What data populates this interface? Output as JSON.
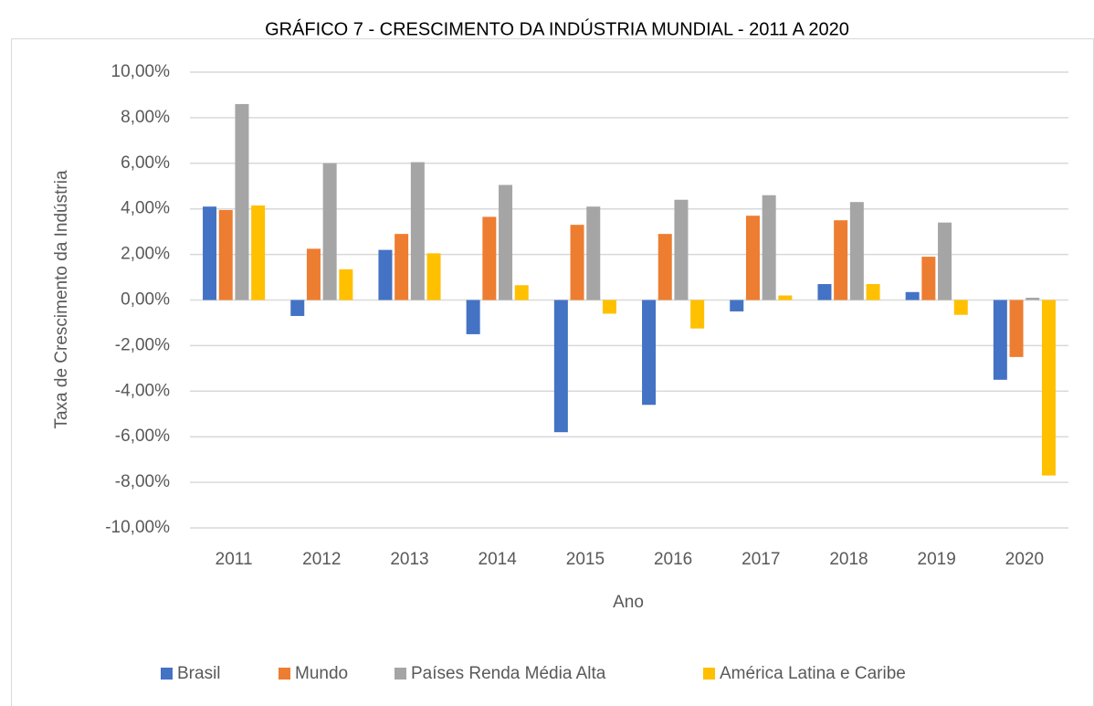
{
  "chart_data": {
    "type": "bar",
    "title": "GRÁFICO 7 - CRESCIMENTO DA INDÚSTRIA MUNDIAL - 2011 A 2020",
    "xlabel": "Ano",
    "ylabel": "Taxa de Crescimento da Indústria",
    "categories": [
      "2011",
      "2012",
      "2013",
      "2014",
      "2015",
      "2016",
      "2017",
      "2018",
      "2019",
      "2020"
    ],
    "series": [
      {
        "name": "Brasil",
        "color": "#4472c4",
        "values": [
          4.1,
          -0.7,
          2.2,
          -1.5,
          -5.8,
          -4.6,
          -0.5,
          0.7,
          0.35,
          -3.5
        ]
      },
      {
        "name": "Mundo",
        "color": "#ed7d31",
        "values": [
          3.95,
          2.25,
          2.9,
          3.65,
          3.3,
          2.9,
          3.7,
          3.5,
          1.9,
          -2.5
        ]
      },
      {
        "name": "Países Renda Média Alta",
        "color": "#a5a5a5",
        "values": [
          8.6,
          6.0,
          6.05,
          5.05,
          4.1,
          4.4,
          4.6,
          4.3,
          3.4,
          0.1
        ]
      },
      {
        "name": "América Latina e Caribe",
        "color": "#ffc000",
        "values": [
          4.15,
          1.35,
          2.05,
          0.65,
          -0.6,
          -1.25,
          0.2,
          0.7,
          -0.65,
          -7.7
        ]
      }
    ],
    "ylim": [
      -10,
      10
    ],
    "yticks": [
      {
        "value": -10,
        "label": "-10,00%"
      },
      {
        "value": -8,
        "label": "-8,00%"
      },
      {
        "value": -6,
        "label": "-6,00%"
      },
      {
        "value": -4,
        "label": "-4,00%"
      },
      {
        "value": -2,
        "label": "-2,00%"
      },
      {
        "value": 0,
        "label": "0,00%"
      },
      {
        "value": 2,
        "label": "2,00%"
      },
      {
        "value": 4,
        "label": "4,00%"
      },
      {
        "value": 6,
        "label": "6,00%"
      },
      {
        "value": 8,
        "label": "8,00%"
      },
      {
        "value": 10,
        "label": "10,00%"
      }
    ],
    "grid": true,
    "legend": "bottom"
  }
}
